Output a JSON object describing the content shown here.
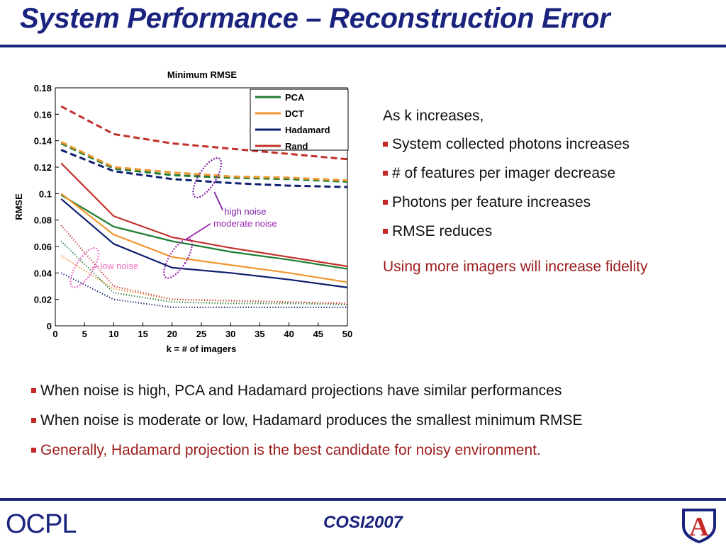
{
  "slide": {
    "title": "System Performance – Reconstruction Error",
    "footer_text": "COSI2007",
    "logo_text": "OCPL",
    "crest_letter": "A"
  },
  "right_panel": {
    "intro": "As k increases,",
    "bullets": [
      "System collected photons increases",
      "# of features per imager decrease",
      "Photons per feature increases",
      "RMSE reduces"
    ],
    "conclusion": "Using more imagers will increase fidelity"
  },
  "bottom_bullets": [
    "When noise is high, PCA and Hadamard projections have similar performances",
    "When noise is moderate or low, Hadamard produces the smallest minimum RMSE",
    "Generally, Hadamard projection is the best candidate for noisy environment."
  ],
  "colors": {
    "title": "#1a237e",
    "bullet_square": "#c62828",
    "emphasis_text": "#9b1b1b",
    "PCA": "#1e7d32",
    "DCT": "#f0962e",
    "Hadamard": "#0d1f6e",
    "Rand": "#c2302a",
    "annotation_high": "#7b1fa2",
    "annotation_moderate": "#9c27b0",
    "annotation_low": "#ee6fc0"
  },
  "chart_data": {
    "type": "line",
    "title": "Minimum RMSE",
    "xlabel": "k = # of imagers",
    "ylabel": "RMSE",
    "xlim": [
      0,
      50
    ],
    "ylim": [
      0,
      0.18
    ],
    "x": [
      1,
      10,
      20,
      30,
      40,
      50
    ],
    "xticks": [
      "0",
      "5",
      "10",
      "15",
      "20",
      "25",
      "30",
      "35",
      "40",
      "45",
      "50"
    ],
    "yticks": [
      "0",
      "0.02",
      "0.04",
      "0.06",
      "0.08",
      "0.1",
      "0.12",
      "0.14",
      "0.16",
      "0.18"
    ],
    "legend": {
      "placement": "top-right",
      "entries": [
        "PCA",
        "DCT",
        "Hadamard",
        "Rand"
      ]
    },
    "series": [
      {
        "name": "PCA",
        "noise": "high",
        "style": "dashed",
        "values": [
          0.138,
          0.119,
          0.114,
          0.112,
          0.111,
          0.109
        ]
      },
      {
        "name": "DCT",
        "noise": "high",
        "style": "dashed",
        "values": [
          0.139,
          0.12,
          0.116,
          0.113,
          0.112,
          0.11
        ]
      },
      {
        "name": "Hadamard",
        "noise": "high",
        "style": "dashed",
        "values": [
          0.133,
          0.117,
          0.111,
          0.108,
          0.106,
          0.105
        ]
      },
      {
        "name": "Rand",
        "noise": "high",
        "style": "dashed",
        "values": [
          0.166,
          0.145,
          0.138,
          0.134,
          0.13,
          0.126
        ]
      },
      {
        "name": "PCA",
        "noise": "moderate",
        "style": "solid",
        "values": [
          0.099,
          0.075,
          0.064,
          0.056,
          0.05,
          0.043
        ]
      },
      {
        "name": "DCT",
        "noise": "moderate",
        "style": "solid",
        "values": [
          0.1,
          0.069,
          0.052,
          0.046,
          0.04,
          0.033
        ]
      },
      {
        "name": "Hadamard",
        "noise": "moderate",
        "style": "solid",
        "values": [
          0.096,
          0.062,
          0.044,
          0.04,
          0.035,
          0.029
        ]
      },
      {
        "name": "Rand",
        "noise": "moderate",
        "style": "solid",
        "values": [
          0.123,
          0.083,
          0.067,
          0.059,
          0.052,
          0.045
        ]
      },
      {
        "name": "PCA",
        "noise": "low",
        "style": "dotted",
        "values": [
          0.064,
          0.025,
          0.018,
          0.017,
          0.017,
          0.016
        ]
      },
      {
        "name": "DCT",
        "noise": "low",
        "style": "dotted",
        "values": [
          0.053,
          0.028,
          0.02,
          0.019,
          0.018,
          0.017
        ]
      },
      {
        "name": "Hadamard",
        "noise": "low",
        "style": "dotted",
        "values": [
          0.04,
          0.02,
          0.014,
          0.014,
          0.014,
          0.014
        ]
      },
      {
        "name": "Rand",
        "noise": "low",
        "style": "dotted",
        "values": [
          0.076,
          0.03,
          0.02,
          0.019,
          0.018,
          0.017
        ]
      }
    ],
    "annotations": [
      {
        "text": "high noise",
        "color_key": "annotation_high",
        "target_x": 26,
        "target_y": 0.112
      },
      {
        "text": "moderate noise",
        "color_key": "annotation_moderate",
        "target_x": 21,
        "target_y": 0.051
      },
      {
        "text": "low noise",
        "color_key": "annotation_low",
        "target_x": 5,
        "target_y": 0.044
      }
    ]
  }
}
